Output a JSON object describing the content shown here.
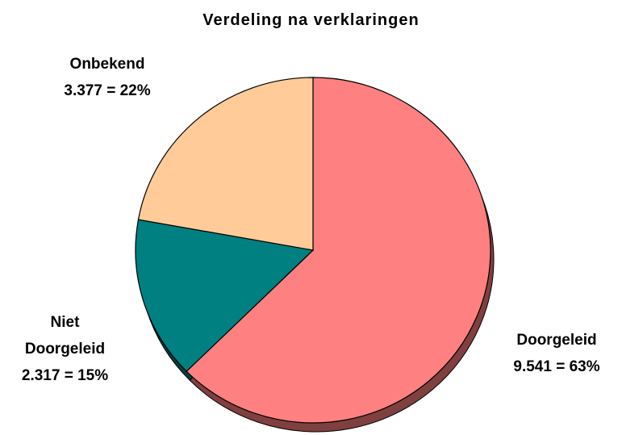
{
  "chart_data": {
    "type": "pie",
    "title": "Verdeling na verklaringen",
    "categories": [
      "Doorgeleid",
      "Niet Doorgeleid",
      "Onbekend"
    ],
    "values": [
      9541,
      2317,
      3377
    ],
    "value_labels": [
      "9.541 = 63%",
      "2.317 = 15%",
      "3.377 = 22%"
    ],
    "colors": [
      "#ff8080",
      "#008080",
      "#ffcc99"
    ]
  }
}
